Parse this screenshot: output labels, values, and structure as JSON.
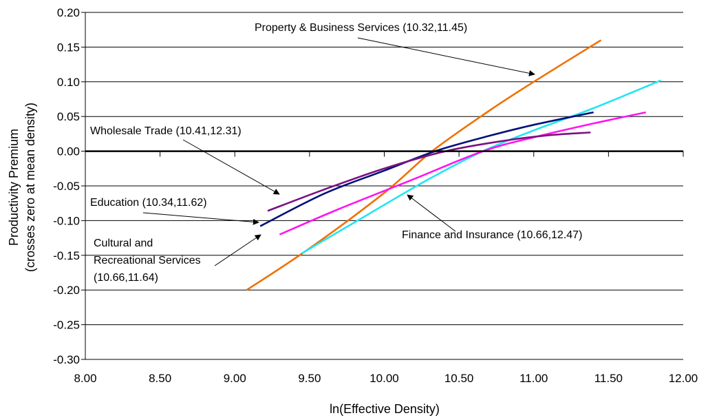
{
  "chart_data": {
    "type": "line",
    "title": "",
    "xlabel": "ln(Effective Density)",
    "ylabel_lines": [
      "Productivity Premium",
      "(crosses zero at mean density)"
    ],
    "xlim": [
      8.0,
      12.0
    ],
    "ylim": [
      -0.3,
      0.2
    ],
    "x_ticks": [
      {
        "value": 8.0,
        "label": "8.00"
      },
      {
        "value": 8.5,
        "label": "8.50"
      },
      {
        "value": 9.0,
        "label": "9.00"
      },
      {
        "value": 9.5,
        "label": "9.50"
      },
      {
        "value": 10.0,
        "label": "10.00"
      },
      {
        "value": 10.5,
        "label": "10.50"
      },
      {
        "value": 11.0,
        "label": "11.00"
      },
      {
        "value": 11.5,
        "label": "11.50"
      },
      {
        "value": 12.0,
        "label": "12.00"
      }
    ],
    "y_ticks": [
      {
        "value": 0.2,
        "label": "0.20"
      },
      {
        "value": 0.15,
        "label": "0.15"
      },
      {
        "value": 0.1,
        "label": "0.10"
      },
      {
        "value": 0.05,
        "label": "0.05"
      },
      {
        "value": 0.0,
        "label": "0.00"
      },
      {
        "value": -0.05,
        "label": "-0.05"
      },
      {
        "value": -0.1,
        "label": "-0.10"
      },
      {
        "value": -0.15,
        "label": "-0.15"
      },
      {
        "value": -0.2,
        "label": "-0.20"
      },
      {
        "value": -0.25,
        "label": "-0.25"
      },
      {
        "value": -0.3,
        "label": "-0.30"
      }
    ],
    "grid": "horizontal",
    "series": [
      {
        "name": "Property & Business Services",
        "color": "#f07000",
        "x": [
          9.08,
          9.5,
          10.0,
          10.32,
          10.7,
          11.0,
          11.45
        ],
        "y": [
          -0.2,
          -0.14,
          -0.06,
          0.0,
          0.058,
          0.1,
          0.16
        ]
      },
      {
        "name": "Finance and Insurance",
        "color": "#22e5f2",
        "x": [
          9.45,
          9.9,
          10.3,
          10.66,
          11.0,
          11.4,
          11.85
        ],
        "y": [
          -0.147,
          -0.09,
          -0.04,
          0.0,
          0.03,
          0.062,
          0.102
        ]
      },
      {
        "name": "Cultural and Recreational Services",
        "color": "#ff14f0",
        "x": [
          9.3,
          9.7,
          10.2,
          10.66,
          11.0,
          11.4,
          11.75
        ],
        "y": [
          -0.12,
          -0.083,
          -0.04,
          0.0,
          0.02,
          0.04,
          0.056
        ]
      },
      {
        "name": "Education",
        "color": "#00107a",
        "x": [
          9.17,
          9.6,
          10.0,
          10.34,
          10.7,
          11.0,
          11.4
        ],
        "y": [
          -0.108,
          -0.061,
          -0.028,
          0.0,
          0.022,
          0.038,
          0.056
        ]
      },
      {
        "name": "Wholesale Trade",
        "color": "#7a1082",
        "x": [
          9.22,
          9.6,
          10.0,
          10.41,
          10.8,
          11.1,
          11.38
        ],
        "y": [
          -0.086,
          -0.055,
          -0.025,
          0.0,
          0.015,
          0.023,
          0.027
        ]
      }
    ],
    "annotations": [
      {
        "lines": [
          "Property & Business Services (10.32,11.45)"
        ],
        "series": "Property & Business Services"
      },
      {
        "lines": [
          "Wholesale Trade (10.41,12.31)"
        ],
        "series": "Wholesale Trade"
      },
      {
        "lines": [
          "Education (10.34,11.62)"
        ],
        "series": "Education"
      },
      {
        "lines": [
          "Cultural and",
          "Recreational Services",
          "(10.66,11.64)"
        ],
        "series": "Cultural and Recreational Services"
      },
      {
        "lines": [
          "Finance and Insurance (10.66,12.47)"
        ],
        "series": "Finance and Insurance"
      }
    ]
  }
}
